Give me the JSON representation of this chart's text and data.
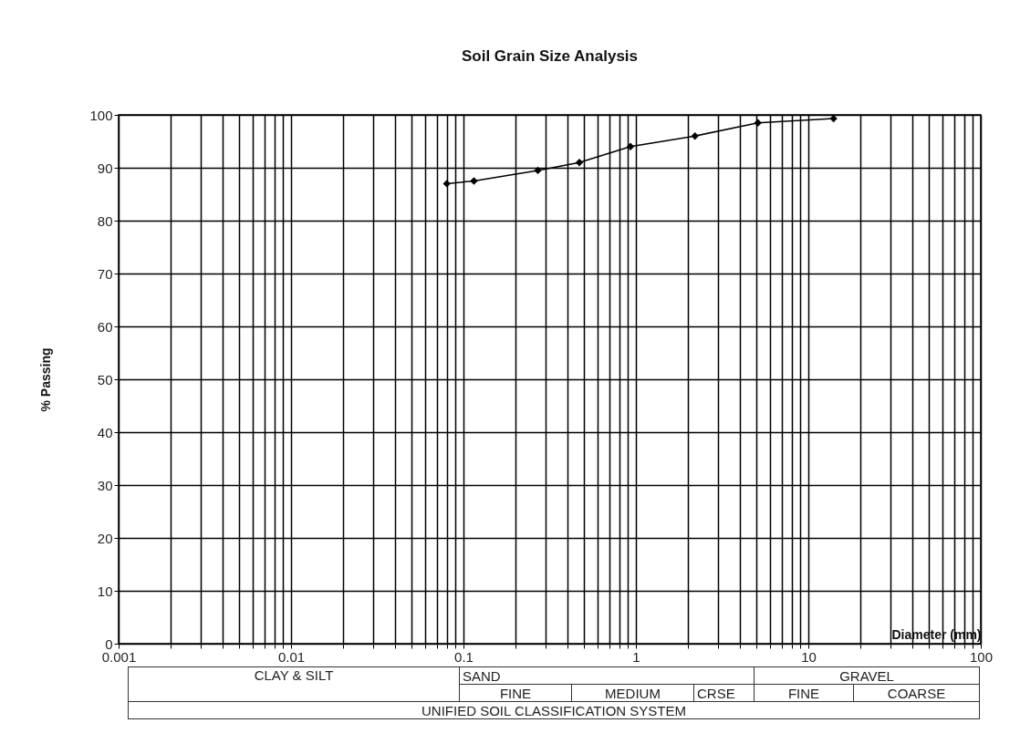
{
  "chart_data": {
    "type": "line",
    "title": "Soil Grain Size Analysis",
    "xlabel": "Diameter (mm)",
    "ylabel": "% Passing",
    "x": [
      0.08,
      0.115,
      0.27,
      0.47,
      0.93,
      2.2,
      5.1,
      14
    ],
    "series": [
      {
        "color": "#000000",
        "values": [
          87,
          87.5,
          89.5,
          91,
          94,
          96,
          98.5,
          99.3
        ]
      }
    ],
    "log": "x",
    "xlim": [
      0.001,
      100
    ],
    "xticks": [
      0.001,
      {
        "value": 0.002,
        "label": null
      },
      {
        "value": 0.003,
        "label": null
      },
      {
        "value": 0.004,
        "label": null
      },
      {
        "value": 0.005,
        "label": null
      },
      {
        "value": 0.006,
        "label": null
      },
      {
        "value": 0.007,
        "label": null
      },
      {
        "value": 0.008,
        "label": null
      },
      {
        "value": 0.009,
        "label": null
      },
      0.01,
      {
        "value": 0.02,
        "label": null
      },
      {
        "value": 0.03,
        "label": null
      },
      {
        "value": 0.04,
        "label": null
      },
      {
        "value": 0.05,
        "label": null
      },
      {
        "value": 0.06,
        "label": null
      },
      {
        "value": 0.07,
        "label": null
      },
      {
        "value": 0.08,
        "label": null
      },
      {
        "value": 0.09,
        "label": null
      },
      0.1,
      {
        "value": 0.2,
        "label": null
      },
      {
        "value": 0.3,
        "label": null
      },
      {
        "value": 0.4,
        "label": null
      },
      {
        "value": 0.5,
        "label": null
      },
      {
        "value": 0.6,
        "label": null
      },
      {
        "value": 0.7,
        "label": null
      },
      {
        "value": 0.8,
        "label": null
      },
      {
        "value": 0.9,
        "label": null
      },
      1,
      {
        "value": 2,
        "label": null
      },
      {
        "value": 3,
        "label": null
      },
      {
        "value": 4,
        "label": null
      },
      {
        "value": 5,
        "label": null
      },
      {
        "value": 6,
        "label": null
      },
      {
        "value": 7,
        "label": null
      },
      {
        "value": 8,
        "label": null
      },
      {
        "value": 9,
        "label": null
      },
      10,
      {
        "value": 20,
        "label": null
      },
      {
        "value": 30,
        "label": null
      },
      {
        "value": 40,
        "label": null
      },
      {
        "value": 50,
        "label": null
      },
      {
        "value": 60,
        "label": null
      },
      {
        "value": 70,
        "label": null
      },
      {
        "value": 80,
        "label": null
      },
      {
        "value": 90,
        "label": null
      },
      100
    ],
    "ylim": [
      0,
      100
    ],
    "yticks": [
      0,
      10,
      20,
      30,
      40,
      50,
      60,
      70,
      80,
      90,
      100
    ],
    "grid": true,
    "marker": "diamond",
    "line_style": "solid",
    "legend": false,
    "annotations": [
      "CLAY & SILT",
      "SAND",
      "GRAVEL",
      "FINE",
      "MEDIUM",
      "CRSE",
      "FINE",
      "COARSE",
      "UNIFIED SOIL CLASSIFICATION SYSTEM"
    ]
  }
}
